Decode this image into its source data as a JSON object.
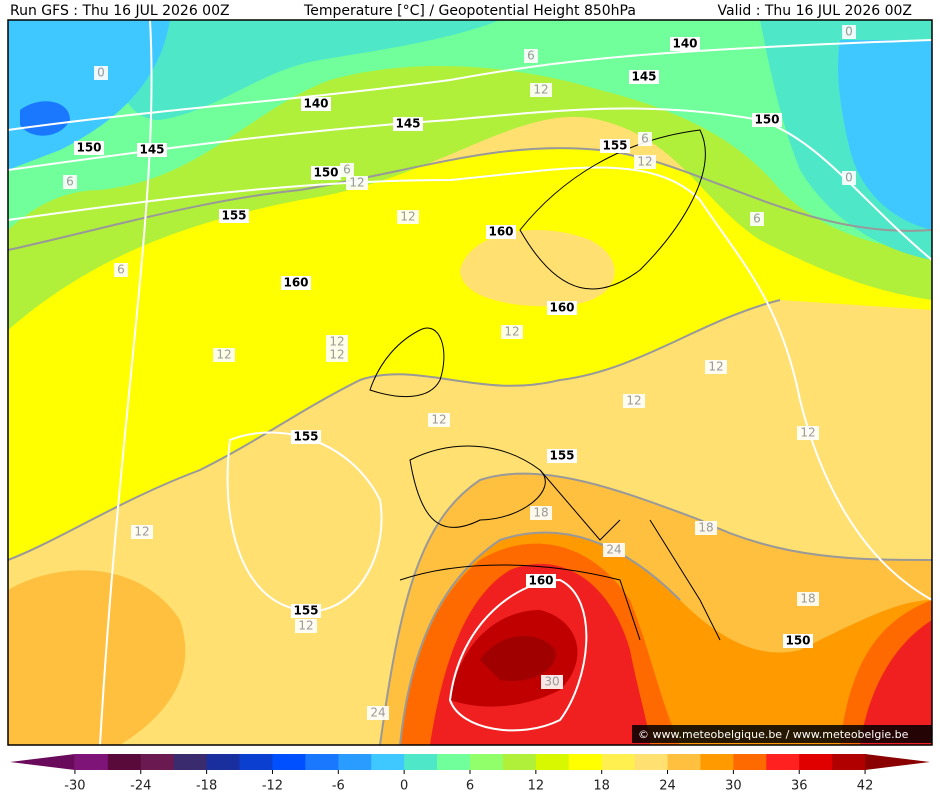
{
  "header": {
    "left": "Run GFS : Thu 16 JUL 2026 00Z",
    "center": "Temperature [°C] / Geopotential Height 850hPa",
    "right": "Valid : Thu 16 JUL 2026 00Z"
  },
  "geopotential_labels": [
    "140",
    "145",
    "140",
    "145",
    "150",
    "155",
    "150",
    "145",
    "150",
    "155",
    "160",
    "160",
    "160",
    "155",
    "155",
    "160",
    "155",
    "150"
  ],
  "temperature_labels": [
    "0",
    "0",
    "6",
    "12",
    "6",
    "12",
    "6",
    "12",
    "6",
    "12",
    "6",
    "0",
    "6",
    "12",
    "12",
    "12",
    "12",
    "12",
    "12",
    "12",
    "12",
    "12",
    "18",
    "18",
    "24",
    "12",
    "18",
    "30",
    "24"
  ],
  "watermark": "© www.meteobelgique.be / www.meteobelgie.be",
  "colorbar": {
    "range": [
      -33,
      45
    ],
    "ticks": [
      -30,
      -24,
      -18,
      -12,
      -6,
      0,
      6,
      12,
      18,
      24,
      30,
      36,
      42
    ],
    "colors": [
      "#6a0a5a",
      "#7e1478",
      "#5a0a3a",
      "#6a1a50",
      "#3a2a6e",
      "#1a2f9e",
      "#0a3fd0",
      "#0050ff",
      "#1a78ff",
      "#2a9cff",
      "#3ec8ff",
      "#4ee8c8",
      "#70ff9a",
      "#90ff6a",
      "#b0f03a",
      "#d8f800",
      "#ffff00",
      "#fff050",
      "#ffe070",
      "#ffc040",
      "#ff9a00",
      "#ff6a00",
      "#ff2020",
      "#e00000",
      "#b00000",
      "#8a0000"
    ]
  }
}
